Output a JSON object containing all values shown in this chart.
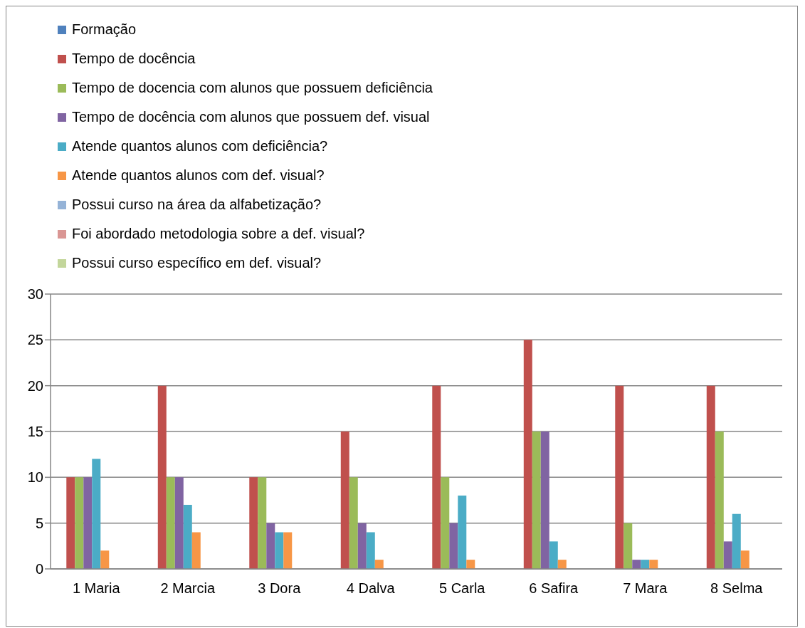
{
  "chart_data": {
    "type": "bar",
    "categories": [
      "1 Maria",
      "2 Marcia",
      "3 Dora",
      "4 Dalva",
      "5 Carla",
      "6 Safira",
      "7 Mara",
      "8 Selma"
    ],
    "series": [
      {
        "name": "Formação",
        "color": "#4f81bd",
        "values": [
          0,
          0,
          0,
          0,
          0,
          0,
          0,
          0
        ]
      },
      {
        "name": "Tempo de docência",
        "color": "#c0504d",
        "values": [
          10,
          20,
          10,
          15,
          20,
          25,
          20,
          20
        ]
      },
      {
        "name": "Tempo de docencia com alunos que possuem deficiência",
        "color": "#9bbb59",
        "values": [
          10,
          10,
          10,
          10,
          10,
          15,
          5,
          15
        ]
      },
      {
        "name": "Tempo de docência com alunos que possuem def. visual",
        "color": "#8064a2",
        "values": [
          10,
          10,
          5,
          5,
          5,
          15,
          1,
          3
        ]
      },
      {
        "name": "Atende quantos alunos com deficiência?",
        "color": "#4bacc6",
        "values": [
          12,
          7,
          4,
          4,
          8,
          3,
          1,
          6
        ]
      },
      {
        "name": "Atende quantos alunos com def. visual?",
        "color": "#f79646",
        "values": [
          2,
          4,
          4,
          1,
          1,
          1,
          1,
          2
        ]
      },
      {
        "name": "Possui curso na área da alfabetização?",
        "color": "#95b3d7",
        "values": [
          0,
          0,
          0,
          0,
          0,
          0,
          0,
          0
        ]
      },
      {
        "name": "Foi abordado metodologia sobre a def. visual?",
        "color": "#da9694",
        "values": [
          0,
          0,
          0,
          0,
          0,
          0,
          0,
          0
        ]
      },
      {
        "name": "Possui curso específico em def. visual?",
        "color": "#c3d69b",
        "values": [
          0,
          0,
          0,
          0,
          0,
          0,
          0,
          0
        ]
      }
    ],
    "ylim": [
      0,
      30
    ],
    "yticks": [
      0,
      5,
      10,
      15,
      20,
      25,
      30
    ],
    "grid": "y",
    "legend": "top left"
  }
}
